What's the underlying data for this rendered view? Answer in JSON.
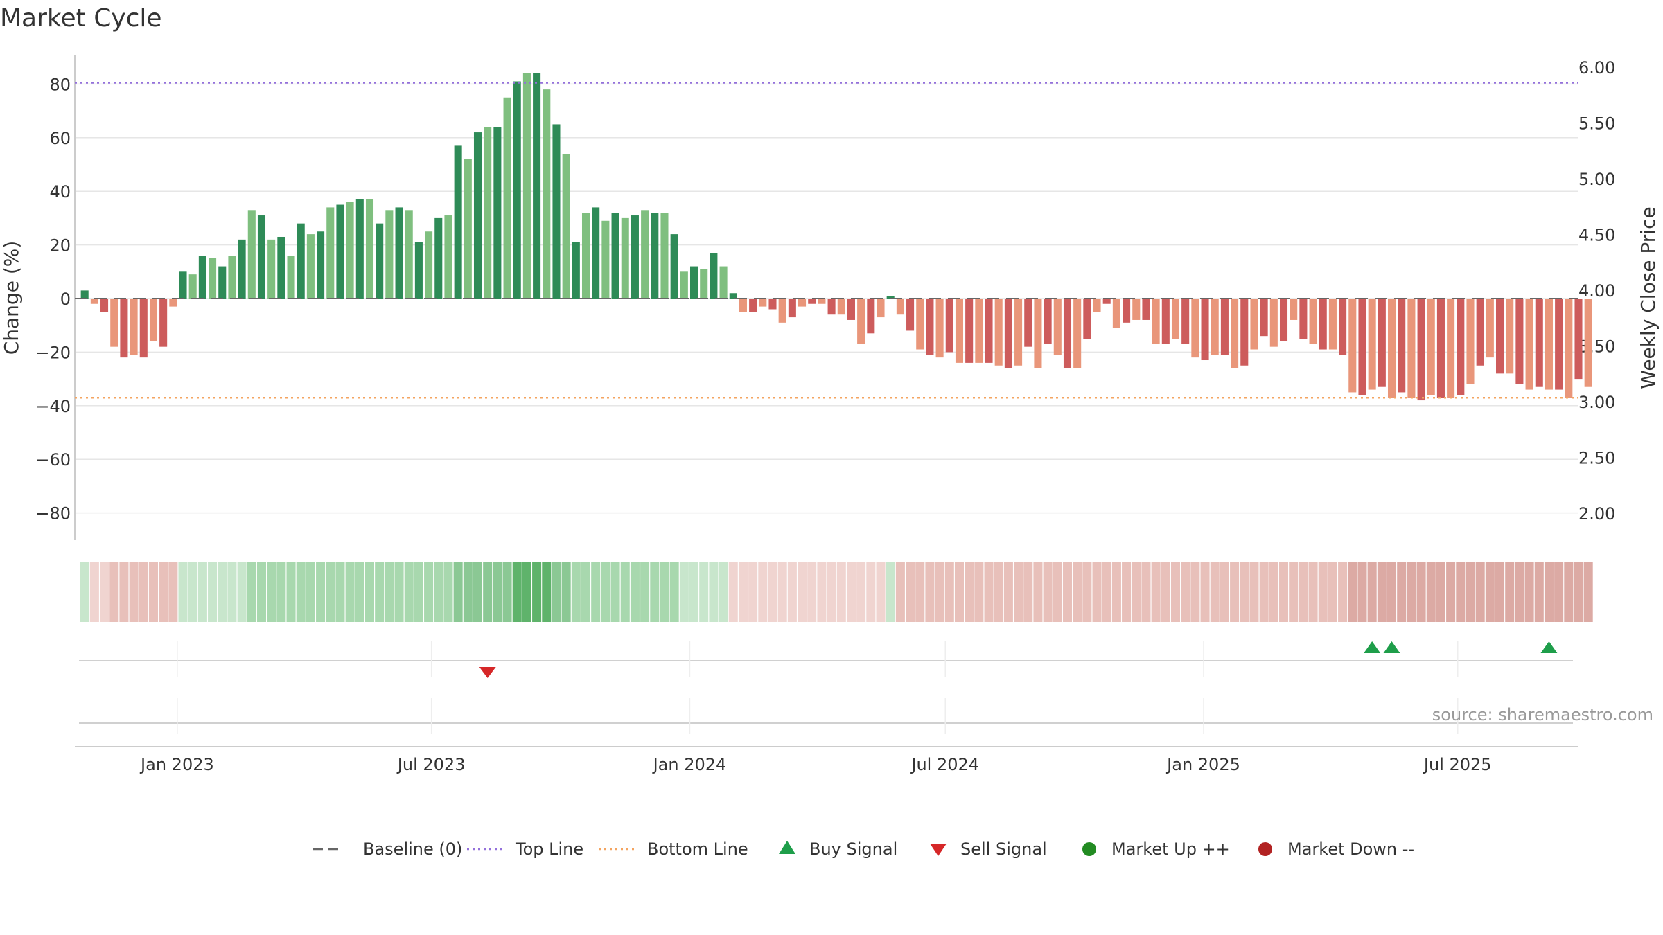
{
  "title": "Market Cycle",
  "source": "source: sharemaestro.com",
  "colors": {
    "up_dark": "#2e8b57",
    "up_light": "#7fbf7f",
    "down_dark": "#cd5c5c",
    "down_light": "#e9967a",
    "top_line": "#9370db",
    "bottom_line": "#f4a460",
    "baseline": "#666666",
    "buy": "#1e9e4a",
    "sell": "#d62728",
    "market_up": "#228b22",
    "market_down": "#b22222",
    "grid": "#e6e6e6"
  },
  "legend": [
    {
      "label": "Baseline (0)",
      "symbol": "dash-line",
      "color": "#666666"
    },
    {
      "label": "Top Line",
      "symbol": "dot-line",
      "color": "#9370db"
    },
    {
      "label": "Bottom Line",
      "symbol": "dot-line",
      "color": "#f4a460"
    },
    {
      "label": "Buy Signal",
      "symbol": "triangle-up",
      "color": "#1e9e4a"
    },
    {
      "label": "Sell Signal",
      "symbol": "triangle-down",
      "color": "#d62728"
    },
    {
      "label": "Market Up ++",
      "symbol": "circle",
      "color": "#228b22"
    },
    {
      "label": "Market Down --",
      "symbol": "circle",
      "color": "#b22222"
    }
  ],
  "chart_data": {
    "type": "bar",
    "title": "Market Cycle",
    "ylabel": "Change (%)",
    "ylabel_right": "Weekly Close Price",
    "ylim": [
      -90,
      90
    ],
    "ylim_right": [
      1.85,
      6.15
    ],
    "yticks": [
      80,
      60,
      40,
      20,
      0,
      -20,
      -40,
      -60,
      -80
    ],
    "yticks_right": [
      "6.00",
      "5.50",
      "5.00",
      "4.50",
      "4.00",
      "3.50",
      "3.00",
      "2.50",
      "2.00"
    ],
    "x_range": [
      "2022-10-20",
      "2025-09-25"
    ],
    "xticks": [
      {
        "label": "Jan 2023",
        "date": "2023-01-01"
      },
      {
        "label": "Jul 2023",
        "date": "2023-07-01"
      },
      {
        "label": "Jan 2024",
        "date": "2024-01-01"
      },
      {
        "label": "Jul 2024",
        "date": "2024-07-01"
      },
      {
        "label": "Jan 2025",
        "date": "2025-01-01"
      },
      {
        "label": "Jul 2025",
        "date": "2025-07-01"
      }
    ],
    "top_line": 80.5,
    "bottom_line": -37,
    "baseline": 0,
    "start_date": "2022-10-27",
    "interval_days": 7,
    "values": [
      3,
      -2,
      -5,
      -18,
      -22,
      -21,
      -22,
      -16,
      -18,
      -3,
      10,
      9,
      16,
      15,
      12,
      16,
      22,
      33,
      31,
      22,
      23,
      16,
      28,
      24,
      25,
      34,
      35,
      36,
      37,
      37,
      28,
      33,
      34,
      33,
      21,
      25,
      30,
      31,
      57,
      52,
      62,
      64,
      64,
      75,
      81,
      84,
      84,
      78,
      65,
      54,
      21,
      32,
      34,
      29,
      32,
      30,
      31,
      33,
      32,
      32,
      24,
      10,
      12,
      11,
      17,
      12,
      2,
      -5,
      -5,
      -3,
      -4,
      -9,
      -7,
      -3,
      -2,
      -2,
      -6,
      -6,
      -8,
      -17,
      -13,
      -7,
      1,
      -6,
      -12,
      -19,
      -21,
      -22,
      -20,
      -24,
      -24,
      -24,
      -24,
      -25,
      -26,
      -25,
      -18,
      -26,
      -17,
      -21,
      -26,
      -26,
      -15,
      -5,
      -2,
      -11,
      -9,
      -8,
      -8,
      -17,
      -17,
      -15,
      -17,
      -22,
      -23,
      -21,
      -21,
      -26,
      -25,
      -19,
      -14,
      -18,
      -16,
      -8,
      -15,
      -17,
      -19,
      -19,
      -21,
      -35,
      -36,
      -34,
      -33,
      -37,
      -35,
      -37,
      -38,
      -36,
      -37,
      -37,
      -36,
      -32,
      -25,
      -22,
      -28,
      -28,
      -32,
      -34,
      -33,
      -34,
      -34,
      -37,
      -30,
      -33
    ],
    "heat_values": [
      1,
      -1,
      -1,
      -2,
      -2,
      -2,
      -2,
      -2,
      -2,
      -2,
      1,
      1,
      1,
      1,
      1,
      1,
      1,
      2,
      2,
      2,
      2,
      2,
      2,
      2,
      2,
      2,
      2,
      2,
      2,
      2,
      2,
      2,
      2,
      2,
      2,
      2,
      2,
      2,
      3,
      3,
      3,
      3,
      3,
      3,
      4,
      4,
      4,
      4,
      3,
      3,
      2,
      2,
      2,
      2,
      2,
      2,
      2,
      2,
      2,
      2,
      2,
      1,
      1,
      1,
      1,
      1,
      -1,
      -1,
      -1,
      -1,
      -1,
      -1,
      -1,
      -1,
      -1,
      -1,
      -1,
      -1,
      -1,
      -1,
      -1,
      -1,
      1,
      -2,
      -2,
      -2,
      -2,
      -2,
      -2,
      -2,
      -2,
      -2,
      -2,
      -2,
      -2,
      -2,
      -2,
      -2,
      -2,
      -2,
      -2,
      -2,
      -2,
      -2,
      -2,
      -2,
      -2,
      -2,
      -2,
      -2,
      -2,
      -2,
      -2,
      -2,
      -2,
      -2,
      -2,
      -2,
      -2,
      -2,
      -2,
      -2,
      -2,
      -2,
      -2,
      -2,
      -2,
      -2,
      -2,
      -3,
      -3,
      -3,
      -3,
      -3,
      -3,
      -3,
      -3,
      -3,
      -3,
      -3,
      -3,
      -3,
      -3,
      -3,
      -3,
      -3,
      -3,
      -3,
      -3,
      -3,
      -3,
      -3,
      -3,
      -3
    ],
    "signals": [
      {
        "type": "sell",
        "date": "2023-08-10"
      },
      {
        "type": "buy",
        "date": "2025-05-01"
      },
      {
        "type": "buy",
        "date": "2025-05-15"
      },
      {
        "type": "buy",
        "date": "2025-09-04"
      }
    ]
  }
}
